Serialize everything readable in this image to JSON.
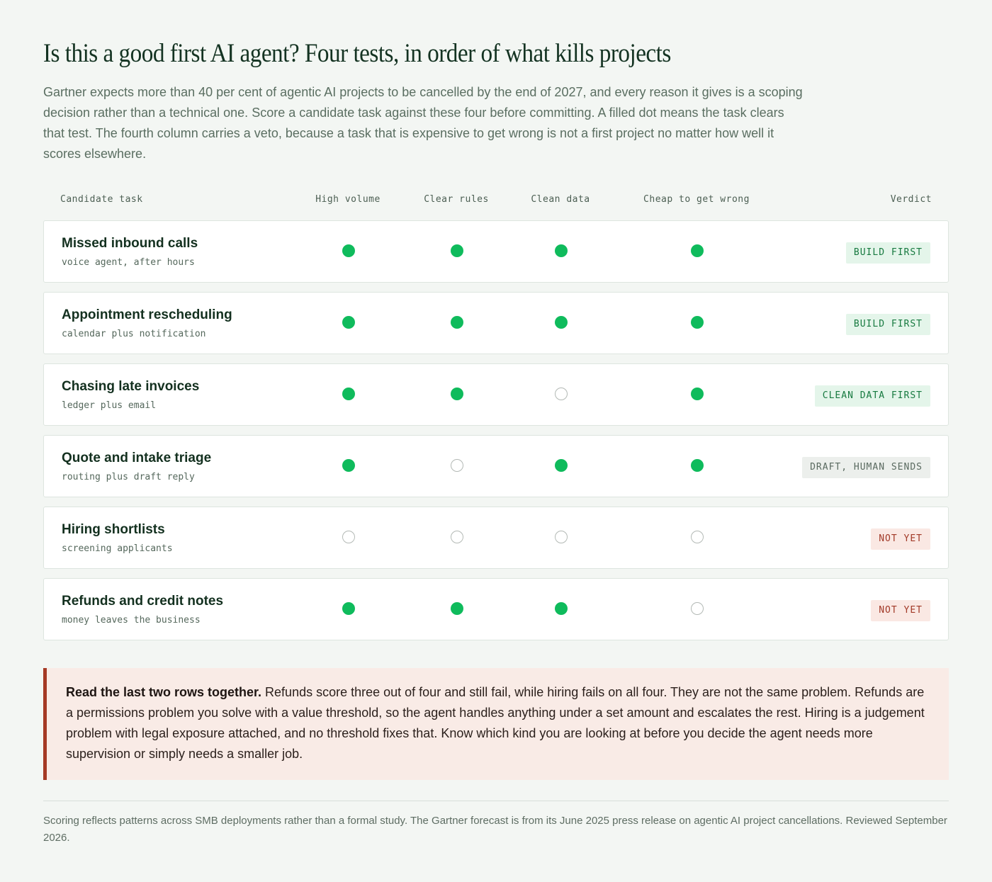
{
  "title": "Is this a good first AI agent? Four tests, in order of what kills projects",
  "intro": "Gartner expects more than 40 per cent of agentic AI projects to be cancelled by the end of 2027, and every reason it gives is a scoping decision rather than a technical one. Score a candidate task against these four before committing. A filled dot means the task clears that test. The fourth column carries a veto, because a task that is expensive to get wrong is not a first project no matter how well it scores elsewhere.",
  "columns": {
    "task": "Candidate task",
    "tests": [
      "High volume",
      "Clear rules",
      "Clean data",
      "Cheap to get wrong"
    ],
    "verdict": "Verdict"
  },
  "colors": {
    "filled_dot": "#0fbb5c",
    "callout_accent": "#a53a25"
  },
  "rows": [
    {
      "title": "Missed inbound calls",
      "subtitle": "voice agent, after hours",
      "scores": [
        true,
        true,
        true,
        true
      ],
      "verdict": "BUILD FIRST",
      "tone": "green"
    },
    {
      "title": "Appointment rescheduling",
      "subtitle": "calendar plus notification",
      "scores": [
        true,
        true,
        true,
        true
      ],
      "verdict": "BUILD FIRST",
      "tone": "green"
    },
    {
      "title": "Chasing late invoices",
      "subtitle": "ledger plus email",
      "scores": [
        true,
        true,
        false,
        true
      ],
      "verdict": "CLEAN DATA FIRST",
      "tone": "green"
    },
    {
      "title": "Quote and intake triage",
      "subtitle": "routing plus draft reply",
      "scores": [
        true,
        false,
        true,
        true
      ],
      "verdict": "DRAFT, HUMAN SENDS",
      "tone": "gray"
    },
    {
      "title": "Hiring shortlists",
      "subtitle": "screening applicants",
      "scores": [
        false,
        false,
        false,
        false
      ],
      "verdict": "NOT YET",
      "tone": "red"
    },
    {
      "title": "Refunds and credit notes",
      "subtitle": "money leaves the business",
      "scores": [
        true,
        true,
        true,
        false
      ],
      "verdict": "NOT YET",
      "tone": "red"
    }
  ],
  "callout": {
    "lead": "Read the last two rows together.",
    "text": " Refunds score three out of four and still fail, while hiring fails on all four. They are not the same problem. Refunds are a permissions problem you solve with a value threshold, so the agent handles anything under a set amount and escalates the rest. Hiring is a judgement problem with legal exposure attached, and no threshold fixes that. Know which kind you are looking at before you decide the agent needs more supervision or simply needs a smaller job."
  },
  "footnote": "Scoring reflects patterns across SMB deployments rather than a formal study. The Gartner forecast is from its June 2025 press release on agentic AI project cancellations. Reviewed September 2026."
}
